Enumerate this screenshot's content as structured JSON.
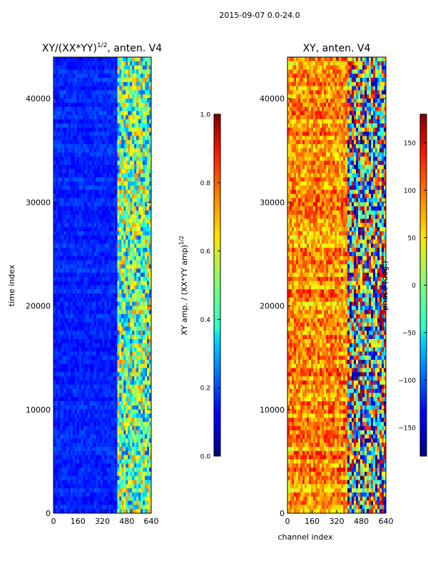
{
  "figure": {
    "suptitle": "2015-09-07 0.0-24.0",
    "xlabel_shared": "channel index"
  },
  "chart_data": [
    {
      "type": "heatmap",
      "title": "XY/(XX*YY)",
      "title_superscript": "1/2",
      "title_suffix": ", anten. V4",
      "xlabel": "",
      "ylabel": "time index",
      "xlim": [
        0,
        640
      ],
      "ylim": [
        0,
        44000
      ],
      "xticks": [
        0,
        160,
        320,
        480,
        640
      ],
      "yticks": [
        0,
        10000,
        20000,
        30000,
        40000
      ],
      "colormap": "jet",
      "colorbar": {
        "label": "XY amp. / (XX*YY amp)",
        "label_superscript": "1/2",
        "range": [
          0.0,
          1.0
        ],
        "ticks": [
          "0.0",
          "0.2",
          "0.4",
          "0.6",
          "0.8",
          "1.0"
        ]
      }
    },
    {
      "type": "heatmap",
      "title": "XY, anten. V4",
      "xlabel": "channel index",
      "ylabel": "",
      "xlim": [
        0,
        640
      ],
      "ylim": [
        0,
        44000
      ],
      "xticks": [
        0,
        160,
        320,
        480,
        640
      ],
      "yticks": [
        0,
        10000,
        20000,
        30000,
        40000
      ],
      "colormap": "jet",
      "colorbar": {
        "label": "phase (deg.)",
        "range": [
          -180,
          180
        ],
        "ticks": [
          "−150",
          "−100",
          "−50",
          "0",
          "50",
          "100",
          "150"
        ]
      }
    }
  ]
}
